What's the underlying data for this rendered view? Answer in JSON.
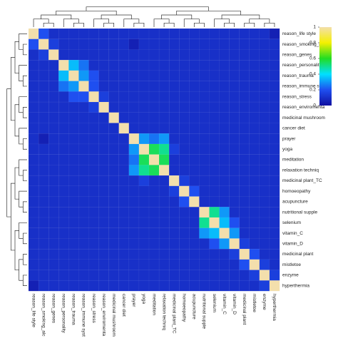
{
  "chart_data": {
    "type": "heatmap",
    "labels": [
      "reason_life style",
      "reason_smoking_alc",
      "reason_genes",
      "reason_personality",
      "reason_trauma",
      "reason_immune syst",
      "reason_stress",
      "reason_enviromenta",
      "medicinal mushroom",
      "cancer diet",
      "prayer",
      "yoga",
      "meditation",
      "relaxation techniq",
      "medicinal plant_TC",
      "homoeopathy",
      "acupuncture",
      "nutritional supple",
      "selenium",
      "vitamin_C",
      "vitamin_D",
      "medicinal plant",
      "mistletoe",
      "enzyme",
      "hyperthermia"
    ],
    "values": [
      [
        1,
        0.2,
        0.1,
        0.1,
        0.1,
        0.1,
        0.1,
        0.1,
        0.1,
        0.1,
        0.1,
        0.1,
        0.1,
        0.1,
        0.1,
        0.1,
        0.1,
        0.1,
        0.1,
        0.1,
        0.1,
        0.1,
        0.1,
        0.1,
        0.05
      ],
      [
        0.2,
        1,
        0.15,
        0.1,
        0.1,
        0.1,
        0.1,
        0.1,
        0.1,
        0.1,
        0.05,
        0.1,
        0.1,
        0.1,
        0.1,
        0.1,
        0.1,
        0.1,
        0.1,
        0.1,
        0.1,
        0.1,
        0.1,
        0.1,
        0.1
      ],
      [
        0.1,
        0.15,
        1,
        0.1,
        0.1,
        0.1,
        0.1,
        0.1,
        0.1,
        0.1,
        0.1,
        0.1,
        0.1,
        0.1,
        0.1,
        0.1,
        0.1,
        0.1,
        0.1,
        0.1,
        0.1,
        0.1,
        0.1,
        0.1,
        0.1
      ],
      [
        0.1,
        0.1,
        0.1,
        1,
        0.35,
        0.25,
        0.1,
        0.1,
        0.1,
        0.1,
        0.1,
        0.1,
        0.1,
        0.1,
        0.1,
        0.1,
        0.1,
        0.1,
        0.1,
        0.1,
        0.1,
        0.1,
        0.1,
        0.1,
        0.1
      ],
      [
        0.1,
        0.1,
        0.1,
        0.35,
        1,
        0.3,
        0.2,
        0.1,
        0.1,
        0.1,
        0.1,
        0.1,
        0.1,
        0.1,
        0.1,
        0.1,
        0.1,
        0.1,
        0.1,
        0.1,
        0.1,
        0.1,
        0.1,
        0.1,
        0.1
      ],
      [
        0.1,
        0.1,
        0.1,
        0.25,
        0.3,
        1,
        0.2,
        0.1,
        0.1,
        0.1,
        0.1,
        0.1,
        0.1,
        0.1,
        0.1,
        0.1,
        0.1,
        0.1,
        0.1,
        0.1,
        0.1,
        0.1,
        0.1,
        0.1,
        0.1
      ],
      [
        0.1,
        0.1,
        0.1,
        0.1,
        0.2,
        0.2,
        1,
        0.15,
        0.1,
        0.1,
        0.1,
        0.1,
        0.1,
        0.1,
        0.1,
        0.1,
        0.1,
        0.1,
        0.1,
        0.1,
        0.1,
        0.1,
        0.1,
        0.1,
        0.1
      ],
      [
        0.1,
        0.1,
        0.1,
        0.1,
        0.1,
        0.1,
        0.15,
        1,
        0.1,
        0.1,
        0.1,
        0.1,
        0.1,
        0.1,
        0.1,
        0.1,
        0.1,
        0.1,
        0.1,
        0.1,
        0.1,
        0.1,
        0.1,
        0.1,
        0.1
      ],
      [
        0.1,
        0.1,
        0.1,
        0.1,
        0.1,
        0.1,
        0.1,
        0.1,
        1,
        0.1,
        0.1,
        0.1,
        0.1,
        0.1,
        0.1,
        0.1,
        0.1,
        0.1,
        0.1,
        0.1,
        0.1,
        0.1,
        0.1,
        0.1,
        0.1
      ],
      [
        0.1,
        0.1,
        0.1,
        0.1,
        0.1,
        0.1,
        0.1,
        0.1,
        0.1,
        1,
        0.1,
        0.1,
        0.1,
        0.1,
        0.1,
        0.1,
        0.1,
        0.1,
        0.1,
        0.1,
        0.1,
        0.1,
        0.1,
        0.1,
        0.1
      ],
      [
        0.1,
        0.05,
        0.1,
        0.1,
        0.1,
        0.1,
        0.1,
        0.1,
        0.1,
        0.1,
        1,
        0.3,
        0.25,
        0.3,
        0.1,
        0.1,
        0.1,
        0.1,
        0.1,
        0.1,
        0.1,
        0.1,
        0.1,
        0.1,
        0.1
      ],
      [
        0.1,
        0.1,
        0.1,
        0.1,
        0.1,
        0.1,
        0.1,
        0.1,
        0.1,
        0.1,
        0.3,
        1,
        0.55,
        0.5,
        0.15,
        0.1,
        0.1,
        0.1,
        0.1,
        0.1,
        0.1,
        0.1,
        0.1,
        0.1,
        0.1
      ],
      [
        0.1,
        0.1,
        0.1,
        0.1,
        0.1,
        0.1,
        0.1,
        0.1,
        0.1,
        0.1,
        0.25,
        0.55,
        1,
        0.55,
        0.1,
        0.1,
        0.1,
        0.1,
        0.1,
        0.1,
        0.1,
        0.1,
        0.1,
        0.1,
        0.1
      ],
      [
        0.1,
        0.1,
        0.1,
        0.1,
        0.1,
        0.1,
        0.1,
        0.1,
        0.1,
        0.1,
        0.3,
        0.5,
        0.55,
        1,
        0.1,
        0.1,
        0.1,
        0.1,
        0.1,
        0.1,
        0.1,
        0.1,
        0.1,
        0.1,
        0.1
      ],
      [
        0.1,
        0.1,
        0.1,
        0.1,
        0.1,
        0.1,
        0.1,
        0.1,
        0.1,
        0.1,
        0.1,
        0.15,
        0.1,
        0.1,
        1,
        0.15,
        0.1,
        0.1,
        0.1,
        0.1,
        0.1,
        0.1,
        0.1,
        0.1,
        0.1
      ],
      [
        0.1,
        0.1,
        0.1,
        0.1,
        0.1,
        0.1,
        0.1,
        0.1,
        0.1,
        0.1,
        0.1,
        0.1,
        0.1,
        0.1,
        0.15,
        1,
        0.2,
        0.1,
        0.1,
        0.1,
        0.1,
        0.1,
        0.1,
        0.1,
        0.1
      ],
      [
        0.1,
        0.1,
        0.1,
        0.1,
        0.1,
        0.1,
        0.1,
        0.1,
        0.1,
        0.1,
        0.1,
        0.1,
        0.1,
        0.1,
        0.1,
        0.2,
        1,
        0.1,
        0.1,
        0.1,
        0.1,
        0.1,
        0.1,
        0.1,
        0.1
      ],
      [
        0.1,
        0.1,
        0.1,
        0.1,
        0.1,
        0.1,
        0.1,
        0.1,
        0.1,
        0.1,
        0.1,
        0.1,
        0.1,
        0.1,
        0.1,
        0.1,
        0.1,
        1,
        0.5,
        0.3,
        0.1,
        0.1,
        0.1,
        0.1,
        0.1
      ],
      [
        0.1,
        0.1,
        0.1,
        0.1,
        0.1,
        0.1,
        0.1,
        0.1,
        0.1,
        0.1,
        0.1,
        0.1,
        0.1,
        0.1,
        0.1,
        0.1,
        0.1,
        0.5,
        1,
        0.35,
        0.2,
        0.1,
        0.1,
        0.1,
        0.1
      ],
      [
        0.1,
        0.1,
        0.1,
        0.1,
        0.1,
        0.1,
        0.1,
        0.1,
        0.1,
        0.1,
        0.1,
        0.1,
        0.1,
        0.1,
        0.1,
        0.1,
        0.1,
        0.3,
        0.35,
        1,
        0.3,
        0.1,
        0.1,
        0.1,
        0.1
      ],
      [
        0.1,
        0.1,
        0.1,
        0.1,
        0.1,
        0.1,
        0.1,
        0.1,
        0.1,
        0.1,
        0.1,
        0.1,
        0.1,
        0.1,
        0.1,
        0.1,
        0.1,
        0.1,
        0.2,
        0.3,
        1,
        0.15,
        0.1,
        0.1,
        0.1
      ],
      [
        0.1,
        0.1,
        0.1,
        0.1,
        0.1,
        0.1,
        0.1,
        0.1,
        0.1,
        0.1,
        0.1,
        0.1,
        0.1,
        0.1,
        0.1,
        0.1,
        0.1,
        0.1,
        0.1,
        0.1,
        0.15,
        1,
        0.2,
        0.1,
        0.1
      ],
      [
        0.1,
        0.1,
        0.1,
        0.1,
        0.1,
        0.1,
        0.1,
        0.1,
        0.1,
        0.1,
        0.1,
        0.1,
        0.1,
        0.1,
        0.1,
        0.1,
        0.1,
        0.1,
        0.1,
        0.1,
        0.1,
        0.2,
        1,
        0.15,
        0.1
      ],
      [
        0.1,
        0.1,
        0.1,
        0.1,
        0.1,
        0.1,
        0.1,
        0.1,
        0.1,
        0.1,
        0.1,
        0.1,
        0.1,
        0.1,
        0.1,
        0.1,
        0.1,
        0.1,
        0.1,
        0.1,
        0.1,
        0.1,
        0.15,
        1,
        0.15
      ],
      [
        0.05,
        0.1,
        0.1,
        0.1,
        0.1,
        0.1,
        0.1,
        0.1,
        0.1,
        0.1,
        0.1,
        0.1,
        0.1,
        0.1,
        0.1,
        0.1,
        0.1,
        0.1,
        0.1,
        0.1,
        0.1,
        0.1,
        0.1,
        0.15,
        1
      ]
    ],
    "clim": [
      0,
      1
    ],
    "colorscale": [
      "#1010a0",
      "#1f4ff0",
      "#00e0ff",
      "#22dd22",
      "#f5f000",
      "#f3dfac"
    ],
    "cticks": [
      0,
      0.2,
      0.4,
      0.6,
      0.8,
      1
    ]
  }
}
